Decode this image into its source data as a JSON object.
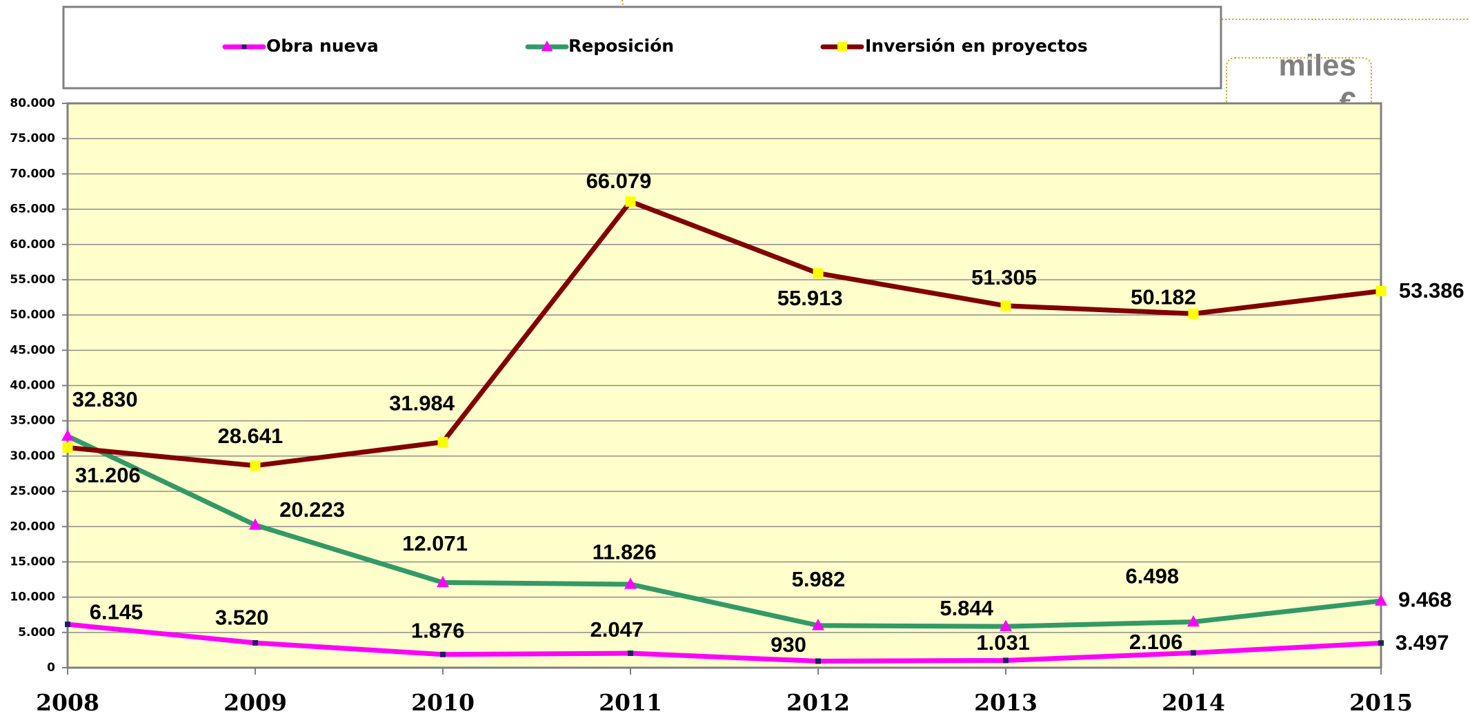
{
  "chart_data": {
    "type": "line",
    "unit_label": [
      "miles",
      "€"
    ],
    "categories": [
      "2008",
      "2009",
      "2010",
      "2011",
      "2012",
      "2013",
      "2014",
      "2015"
    ],
    "series": [
      {
        "name": "Obra nueva",
        "color": "#ff00ff",
        "marker": "square",
        "marker_color": "#1f1f5f",
        "values": [
          6145,
          3520,
          1876,
          2047,
          930,
          1031,
          2106,
          3497
        ],
        "value_labels": [
          "6.145",
          "3.520",
          "1.876",
          "2.047",
          "930",
          "1.031",
          "2.106",
          "3.497"
        ]
      },
      {
        "name": "Reposición",
        "color": "#339966",
        "marker": "triangle",
        "marker_color": "#ff00ff",
        "values": [
          32830,
          20223,
          12071,
          11826,
          5982,
          5844,
          6498,
          9468
        ],
        "value_labels": [
          "32.830",
          "20.223",
          "12.071",
          "11.826",
          "5.982",
          "5.844",
          "6.498",
          "9.468"
        ]
      },
      {
        "name": "Inversión en proyectos",
        "color": "#800000",
        "marker": "square",
        "marker_color": "#ffff00",
        "values": [
          31206,
          28641,
          31984,
          66079,
          55913,
          51305,
          50182,
          53386
        ],
        "value_labels": [
          "31.206",
          "28.641",
          "31.984",
          "66.079",
          "55.913",
          "51.305",
          "50.182",
          "53.386"
        ]
      }
    ],
    "ylim": [
      0,
      80000
    ],
    "yticks": [
      0,
      {
        "value": 5000,
        "label": "5.000"
      },
      {
        "value": 10000,
        "label": "10.000"
      },
      {
        "value": 15000,
        "label": "15.000"
      },
      {
        "value": 20000,
        "label": "20.000"
      },
      {
        "value": 25000,
        "label": "25.000"
      },
      {
        "value": 30000,
        "label": "30.000"
      },
      {
        "value": 35000,
        "label": "35.000"
      },
      {
        "value": 40000,
        "label": "40.000"
      },
      {
        "value": 45000,
        "label": "45.000"
      },
      {
        "value": 50000,
        "label": "50.000"
      },
      {
        "value": 55000,
        "label": "55.000"
      },
      {
        "value": 60000,
        "label": "60.000"
      },
      {
        "value": 65000,
        "label": "65.000"
      },
      {
        "value": 70000,
        "label": "70.000"
      },
      {
        "value": 75000,
        "label": "75.000"
      },
      {
        "value": 80000,
        "label": "80.000"
      }
    ],
    "grid": true,
    "legend": "top",
    "plot_background": "#ffffcc"
  }
}
